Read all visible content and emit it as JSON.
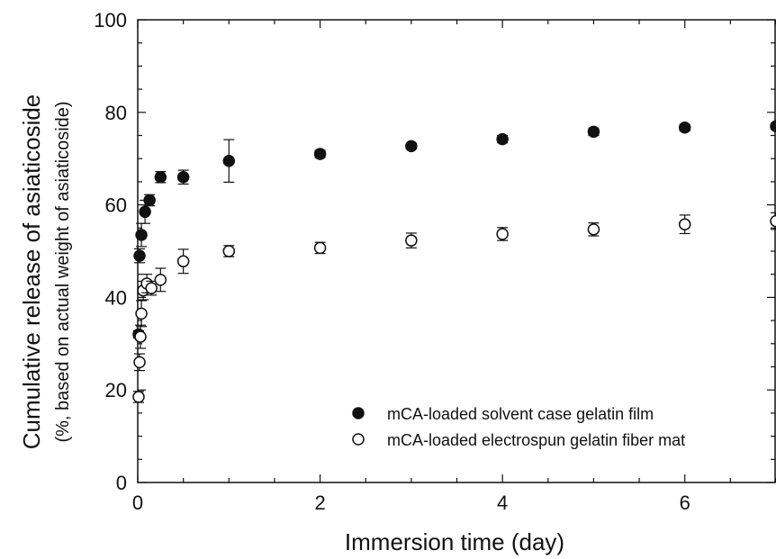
{
  "chart_data": {
    "type": "scatter",
    "title": "",
    "xlabel": "Immersion time (day)",
    "ylabel": "Cumulative release of asiaticoside",
    "ylabel_sub": "(%, based on actual weight of asiaticoside)",
    "xlim": [
      0,
      7
    ],
    "ylim": [
      0,
      100
    ],
    "x_ticks": [
      0,
      2,
      4,
      6
    ],
    "y_ticks": [
      0,
      20,
      40,
      60,
      80,
      100
    ],
    "grid": false,
    "legend_position": "bottom-right",
    "series": [
      {
        "name": "mCA-loaded solvent case gelatin film",
        "marker": "filled-circle",
        "x": [
          0.01,
          0.02,
          0.04,
          0.08,
          0.13,
          0.25,
          0.5,
          1,
          2,
          3,
          4,
          5,
          6,
          7
        ],
        "y": [
          32,
          49,
          53.5,
          58.5,
          61,
          66,
          66,
          69.5,
          71,
          72.7,
          74.2,
          75.8,
          76.7,
          77
        ],
        "err": [
          0.8,
          1.5,
          2.5,
          2.5,
          1.2,
          1.2,
          1.5,
          4.6,
          0.8,
          0.6,
          0.8,
          0.8,
          0.7,
          0.7
        ]
      },
      {
        "name": "mCA-loaded electrospun gelatin fiber mat",
        "marker": "open-circle",
        "x": [
          0.01,
          0.02,
          0.03,
          0.04,
          0.06,
          0.1,
          0.15,
          0.25,
          0.5,
          1,
          2,
          3,
          4,
          5,
          6,
          7
        ],
        "y": [
          18.5,
          26,
          31.5,
          36.5,
          41.5,
          43,
          42,
          43.8,
          47.8,
          50,
          50.7,
          52.3,
          53.7,
          54.7,
          55.8,
          56.5
        ],
        "err": [
          1.2,
          1.8,
          2.5,
          2.8,
          2,
          2,
          1.5,
          2.5,
          2.6,
          1.2,
          1.2,
          1.6,
          1.4,
          1.4,
          2,
          1.8
        ]
      }
    ]
  }
}
